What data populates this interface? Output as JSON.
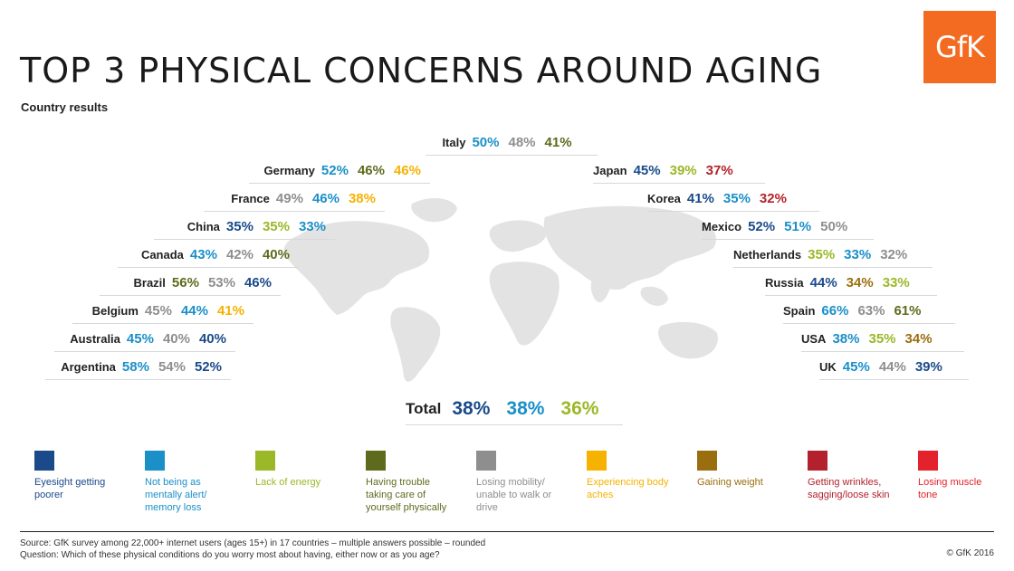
{
  "header": {
    "title": "TOP 3 PHYSICAL CONCERNS AROUND AGING",
    "subtitle": "Country results",
    "logo": "GfK"
  },
  "colors": {
    "eyesight": "#1a4a8a",
    "mental": "#1a8fc8",
    "energy": "#9ab827",
    "physically": "#5e6b1d",
    "mobility": "#8e8e8e",
    "aches": "#f6b200",
    "weight": "#9a6e0e",
    "wrinkles": "#b3222c",
    "muscle": "#e4222b"
  },
  "chart_data": {
    "type": "table",
    "title": "TOP 3 PHYSICAL CONCERNS AROUND AGING",
    "subtitle": "Country results",
    "countries": [
      {
        "name": "Italy",
        "values": [
          {
            "text": "50%",
            "cat": "mental"
          },
          {
            "text": "48%",
            "cat": "mobility"
          },
          {
            "text": "41%",
            "cat": "physically"
          }
        ]
      },
      {
        "name": "Germany",
        "values": [
          {
            "text": "52%",
            "cat": "mental"
          },
          {
            "text": "46%",
            "cat": "physically"
          },
          {
            "text": "46%",
            "cat": "aches"
          }
        ]
      },
      {
        "name": "France",
        "values": [
          {
            "text": "49%",
            "cat": "mobility"
          },
          {
            "text": "46%",
            "cat": "mental"
          },
          {
            "text": "38%",
            "cat": "aches"
          }
        ]
      },
      {
        "name": "China",
        "values": [
          {
            "text": "35%",
            "cat": "eyesight"
          },
          {
            "text": "35%",
            "cat": "energy"
          },
          {
            "text": "33%",
            "cat": "mental"
          }
        ]
      },
      {
        "name": "Canada",
        "values": [
          {
            "text": "43%",
            "cat": "mental"
          },
          {
            "text": "42%",
            "cat": "mobility"
          },
          {
            "text": "40%",
            "cat": "physically"
          }
        ]
      },
      {
        "name": "Brazil",
        "values": [
          {
            "text": "56%",
            "cat": "physically"
          },
          {
            "text": "53%",
            "cat": "mobility"
          },
          {
            "text": "46%",
            "cat": "eyesight"
          }
        ]
      },
      {
        "name": "Belgium",
        "values": [
          {
            "text": "45%",
            "cat": "mobility"
          },
          {
            "text": "44%",
            "cat": "mental"
          },
          {
            "text": "41%",
            "cat": "aches"
          }
        ]
      },
      {
        "name": "Australia",
        "values": [
          {
            "text": "45%",
            "cat": "mental"
          },
          {
            "text": "40%",
            "cat": "mobility"
          },
          {
            "text": "40%",
            "cat": "eyesight"
          }
        ]
      },
      {
        "name": "Argentina",
        "values": [
          {
            "text": "58%",
            "cat": "mental"
          },
          {
            "text": "54%",
            "cat": "mobility"
          },
          {
            "text": "52%",
            "cat": "eyesight"
          }
        ]
      },
      {
        "name": "Japan",
        "values": [
          {
            "text": "45%",
            "cat": "eyesight"
          },
          {
            "text": "39%",
            "cat": "energy"
          },
          {
            "text": "37%",
            "cat": "wrinkles"
          }
        ]
      },
      {
        "name": "Korea",
        "values": [
          {
            "text": "41%",
            "cat": "eyesight"
          },
          {
            "text": "35%",
            "cat": "mental"
          },
          {
            "text": "32%",
            "cat": "wrinkles"
          }
        ]
      },
      {
        "name": "Mexico",
        "values": [
          {
            "text": "52%",
            "cat": "eyesight"
          },
          {
            "text": "51%",
            "cat": "mental"
          },
          {
            "text": "50%",
            "cat": "mobility"
          }
        ]
      },
      {
        "name": "Netherlands",
        "values": [
          {
            "text": "35%",
            "cat": "energy"
          },
          {
            "text": "33%",
            "cat": "mental"
          },
          {
            "text": "32%",
            "cat": "mobility"
          }
        ]
      },
      {
        "name": "Russia",
        "values": [
          {
            "text": "44%",
            "cat": "eyesight"
          },
          {
            "text": "34%",
            "cat": "weight"
          },
          {
            "text": "33%",
            "cat": "energy"
          }
        ]
      },
      {
        "name": "Spain",
        "values": [
          {
            "text": "66%",
            "cat": "mental"
          },
          {
            "text": "63%",
            "cat": "mobility"
          },
          {
            "text": "61%",
            "cat": "physically"
          }
        ]
      },
      {
        "name": "USA",
        "values": [
          {
            "text": "38%",
            "cat": "mental"
          },
          {
            "text": "35%",
            "cat": "energy"
          },
          {
            "text": "34%",
            "cat": "weight"
          }
        ]
      },
      {
        "name": "UK",
        "values": [
          {
            "text": "45%",
            "cat": "mental"
          },
          {
            "text": "44%",
            "cat": "mobility"
          },
          {
            "text": "39%",
            "cat": "eyesight"
          }
        ]
      }
    ],
    "total": {
      "name": "Total",
      "values": [
        {
          "text": "38%",
          "cat": "eyesight"
        },
        {
          "text": "38%",
          "cat": "mental"
        },
        {
          "text": "36%",
          "cat": "energy"
        }
      ]
    },
    "legend": [
      {
        "key": "eyesight",
        "label": "Eyesight getting poorer"
      },
      {
        "key": "mental",
        "label": "Not being as mentally alert/ memory loss"
      },
      {
        "key": "energy",
        "label": "Lack of energy"
      },
      {
        "key": "physically",
        "label": "Having trouble taking care of yourself physically"
      },
      {
        "key": "mobility",
        "label": "Losing mobility/ unable to walk or drive"
      },
      {
        "key": "aches",
        "label": "Experiencing body aches"
      },
      {
        "key": "weight",
        "label": "Gaining weight"
      },
      {
        "key": "wrinkles",
        "label": "Getting wrinkles, sagging/loose skin"
      },
      {
        "key": "muscle",
        "label": "Losing muscle tone"
      }
    ]
  },
  "footer": {
    "source": "Source: GfK survey among 22,000+ internet users (ages 15+) in 17 countries – multiple answers possible – rounded",
    "question": "Question: Which of these physical conditions do you worry most about having, either now or as you age?",
    "copyright": "© GfK 2016"
  }
}
